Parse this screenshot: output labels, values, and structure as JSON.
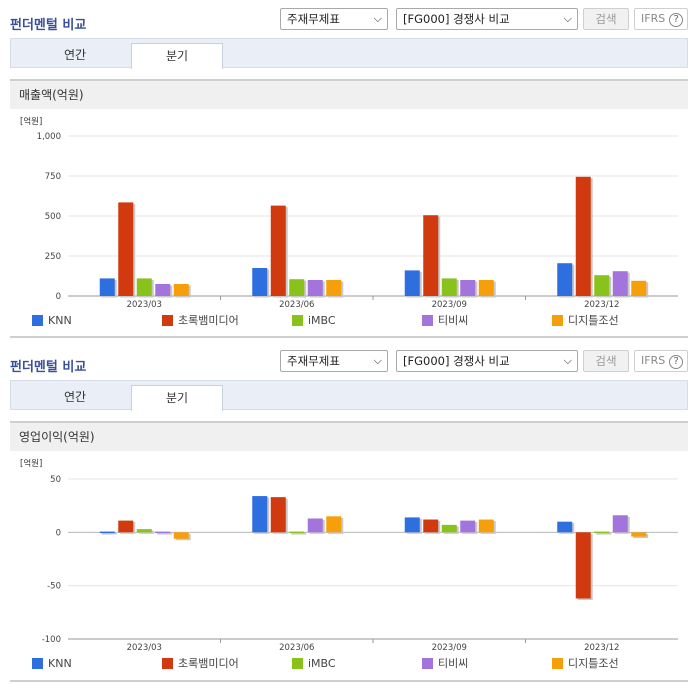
{
  "panels": [
    {
      "title": "펀더멘털 비교",
      "select_statement": "주재무제표",
      "select_compare": "[FG000] 경쟁사 비교",
      "search_label": "검색",
      "ifrs_label": "IFRS",
      "help_label": "?",
      "tabs": [
        {
          "label": "연간",
          "active": false
        },
        {
          "label": "분기",
          "active": true
        }
      ],
      "chart_title": "매출액(억원)"
    },
    {
      "title": "펀더멘털 비교",
      "select_statement": "주재무제표",
      "select_compare": "[FG000] 경쟁사 비교",
      "search_label": "검색",
      "ifrs_label": "IFRS",
      "help_label": "?",
      "tabs": [
        {
          "label": "연간",
          "active": false
        },
        {
          "label": "분기",
          "active": true
        }
      ],
      "chart_title": "영업이익(억원)"
    }
  ],
  "chart_data": [
    {
      "type": "bar",
      "title": "매출액(억원)",
      "unit_label": "[억원]",
      "categories": [
        "2023/03",
        "2023/06",
        "2023/09",
        "2023/12"
      ],
      "ylim": [
        0,
        1000
      ],
      "yticks": [
        0,
        250,
        500,
        750,
        1000
      ],
      "ytick_labels": [
        "0",
        "250",
        "500",
        "750",
        "1,000"
      ],
      "legend_position": "bottom",
      "series": [
        {
          "name": "KNN",
          "color": "#2e6fe0",
          "values": [
            110,
            175,
            160,
            205
          ]
        },
        {
          "name": "초록뱀미디어",
          "color": "#d03a0e",
          "values": [
            585,
            565,
            505,
            745
          ]
        },
        {
          "name": "iMBC",
          "color": "#8ac21c",
          "values": [
            110,
            105,
            110,
            130
          ]
        },
        {
          "name": "티비씨",
          "color": "#a374dc",
          "values": [
            75,
            100,
            100,
            155
          ]
        },
        {
          "name": "디지틀조선",
          "color": "#f5a00a",
          "values": [
            75,
            100,
            100,
            95
          ]
        }
      ]
    },
    {
      "type": "bar",
      "title": "영업이익(억원)",
      "unit_label": "[억원]",
      "categories": [
        "2023/03",
        "2023/06",
        "2023/09",
        "2023/12"
      ],
      "ylim": [
        -100,
        50
      ],
      "yticks": [
        -100,
        -50,
        0,
        50
      ],
      "ytick_labels": [
        "-100",
        "-50",
        "0",
        "50"
      ],
      "legend_position": "bottom",
      "series": [
        {
          "name": "KNN",
          "color": "#2e6fe0",
          "values": [
            1,
            34,
            14,
            10
          ]
        },
        {
          "name": "초록뱀미디어",
          "color": "#d03a0e",
          "values": [
            11,
            33,
            12,
            -62
          ]
        },
        {
          "name": "iMBC",
          "color": "#8ac21c",
          "values": [
            3,
            0,
            7,
            -1
          ]
        },
        {
          "name": "티비씨",
          "color": "#a374dc",
          "values": [
            0,
            13,
            11,
            16
          ]
        },
        {
          "name": "디지틀조선",
          "color": "#f5a00a",
          "values": [
            -6,
            15,
            12,
            -4
          ]
        }
      ]
    }
  ]
}
